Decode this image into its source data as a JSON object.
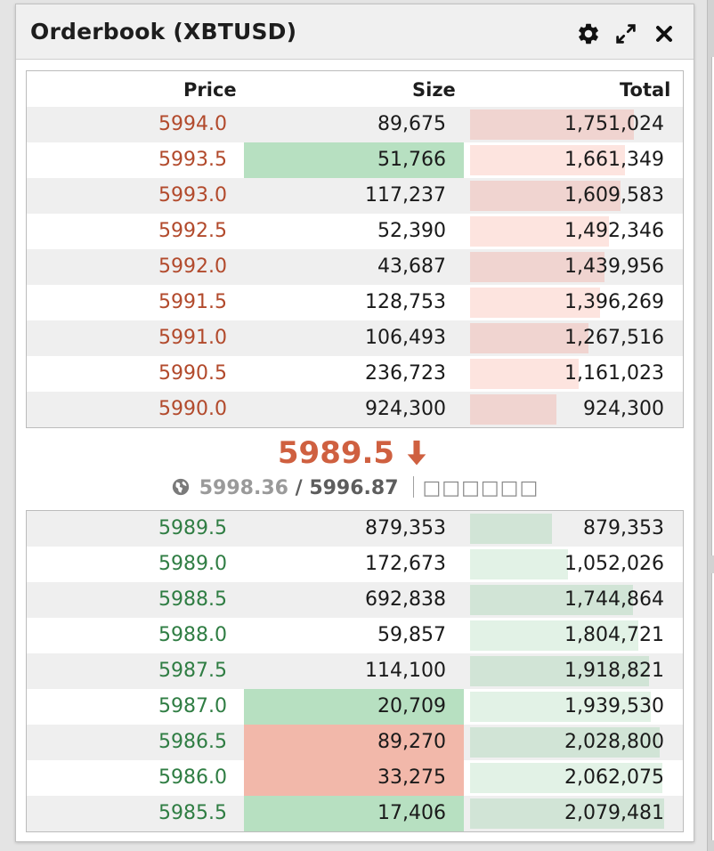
{
  "panel": {
    "title": "Orderbook (XBTUSD)"
  },
  "icons": {
    "settings": "gear-icon",
    "expand": "expand-icon",
    "close": "close-icon",
    "down": "arrow-down-icon",
    "globe": "globe-icon"
  },
  "columns": {
    "price": "Price",
    "size": "Size",
    "total": "Total"
  },
  "colors": {
    "ask_price": "#b24a2c",
    "bid_price": "#2f7d43",
    "last_price": "#cf6040"
  },
  "max_total": 2079481,
  "asks": [
    {
      "price": "5994.0",
      "size": "89,675",
      "total": "1,751,024",
      "total_value": 1751024,
      "highlight": ""
    },
    {
      "price": "5993.5",
      "size": "51,766",
      "total": "1,661,349",
      "total_value": 1661349,
      "highlight": "green"
    },
    {
      "price": "5993.0",
      "size": "117,237",
      "total": "1,609,583",
      "total_value": 1609583,
      "highlight": ""
    },
    {
      "price": "5992.5",
      "size": "52,390",
      "total": "1,492,346",
      "total_value": 1492346,
      "highlight": ""
    },
    {
      "price": "5992.0",
      "size": "43,687",
      "total": "1,439,956",
      "total_value": 1439956,
      "highlight": ""
    },
    {
      "price": "5991.5",
      "size": "128,753",
      "total": "1,396,269",
      "total_value": 1396269,
      "highlight": ""
    },
    {
      "price": "5991.0",
      "size": "106,493",
      "total": "1,267,516",
      "total_value": 1267516,
      "highlight": ""
    },
    {
      "price": "5990.5",
      "size": "236,723",
      "total": "1,161,023",
      "total_value": 1161023,
      "highlight": ""
    },
    {
      "price": "5990.0",
      "size": "924,300",
      "total": "924,300",
      "total_value": 924300,
      "highlight": ""
    }
  ],
  "last_price": {
    "value": "5989.5",
    "direction": "down"
  },
  "index": {
    "index_price": "5998.36",
    "separator": " / ",
    "mark_price": "5996.87",
    "extra": "□□□□□□"
  },
  "bids": [
    {
      "price": "5989.5",
      "size": "879,353",
      "total": "879,353",
      "total_value": 879353,
      "highlight": ""
    },
    {
      "price": "5989.0",
      "size": "172,673",
      "total": "1,052,026",
      "total_value": 1052026,
      "highlight": ""
    },
    {
      "price": "5988.5",
      "size": "692,838",
      "total": "1,744,864",
      "total_value": 1744864,
      "highlight": ""
    },
    {
      "price": "5988.0",
      "size": "59,857",
      "total": "1,804,721",
      "total_value": 1804721,
      "highlight": ""
    },
    {
      "price": "5987.5",
      "size": "114,100",
      "total": "1,918,821",
      "total_value": 1918821,
      "highlight": ""
    },
    {
      "price": "5987.0",
      "size": "20,709",
      "total": "1,939,530",
      "total_value": 1939530,
      "highlight": "green"
    },
    {
      "price": "5986.5",
      "size": "89,270",
      "total": "2,028,800",
      "total_value": 2028800,
      "highlight": "red"
    },
    {
      "price": "5986.0",
      "size": "33,275",
      "total": "2,062,075",
      "total_value": 2062075,
      "highlight": "red"
    },
    {
      "price": "5985.5",
      "size": "17,406",
      "total": "2,079,481",
      "total_value": 2079481,
      "highlight": "green"
    }
  ]
}
